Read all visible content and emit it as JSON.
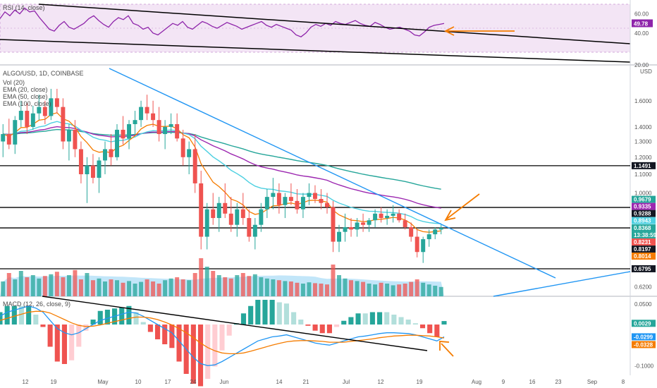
{
  "chart_data": [
    {
      "type": "line",
      "panel": "rsi",
      "title": "RSI (14, close)",
      "ylim": [
        20,
        70
      ],
      "y_ticks": [
        "60.00",
        "40.00",
        "20.00"
      ],
      "band": [
        30,
        70
      ],
      "value_label": "49.78",
      "accent": "#8e24aa",
      "series": [
        {
          "values": [
            55,
            62,
            58,
            64,
            60,
            66,
            62,
            63,
            56,
            50,
            44,
            42,
            48,
            52,
            46,
            44,
            47,
            50,
            55,
            58,
            53,
            49,
            46,
            52,
            56,
            54,
            58,
            50,
            48,
            44,
            46,
            40,
            38,
            42,
            46,
            50,
            48,
            52,
            46,
            44,
            48,
            52,
            50,
            47,
            45,
            48,
            51,
            49,
            47,
            44,
            46,
            48,
            50,
            52,
            48,
            46,
            49,
            47,
            45,
            43,
            38,
            36,
            40,
            46,
            49,
            47,
            50,
            48,
            52,
            50,
            49,
            51,
            53,
            50,
            48,
            47,
            51,
            49,
            46,
            44,
            45,
            46,
            44,
            42,
            38,
            37,
            41,
            46,
            48,
            49,
            50
          ]
        }
      ]
    },
    {
      "type": "candlestick",
      "panel": "price",
      "title": "ALGO/USD, 1D, COINBASE",
      "legend": [
        "Vol (20)",
        "EMA (20, close)",
        "EMA (50, close)",
        "EMA (100, close)"
      ],
      "unit": "USD",
      "ylim": [
        0.58,
        1.9
      ],
      "y_ticks": [
        "1.6000",
        "1.4000",
        "1.3000",
        "1.2000",
        "1.1000",
        "1.0000",
        "0.6200"
      ],
      "x_ticks": [
        "12",
        "19",
        "May",
        "10",
        "17",
        "24",
        "Jun",
        "14",
        "21",
        "Jul",
        "12",
        "19",
        "Aug",
        "9",
        "16",
        "23",
        "Sep",
        "8"
      ],
      "horizontal_levels": [
        1.1491,
        0.9288,
        0.8368,
        0.6795
      ],
      "price_tags": [
        {
          "text": "1.1491",
          "value": 1.1491,
          "color": "#131722"
        },
        {
          "text": "0.9679",
          "value": 0.9679,
          "color": "#26a69a"
        },
        {
          "text": "0.9335",
          "value": 0.9335,
          "color": "#9c27b0"
        },
        {
          "text": "0.9288",
          "value": 0.9288,
          "color": "#131722"
        },
        {
          "text": "0.8943",
          "value": 0.8943,
          "color": "#4dd0e1"
        },
        {
          "text": "0.8368",
          "value": 0.8368,
          "color": "#26a69a"
        },
        {
          "text": "13:38:59",
          "value": 0.8255,
          "color": "#26a69a"
        },
        {
          "text": "0.8231",
          "value": 0.8231,
          "color": "#ef5350"
        },
        {
          "text": "0.8197",
          "value": 0.8197,
          "color": "#131722"
        },
        {
          "text": "0.8014",
          "value": 0.8014,
          "color": "#f57c00"
        },
        {
          "text": "0.6795",
          "value": 0.6795,
          "color": "#131722"
        }
      ],
      "ohlc": [
        [
          1.3,
          1.42,
          1.2,
          1.35
        ],
        [
          1.35,
          1.46,
          1.25,
          1.28
        ],
        [
          1.28,
          1.48,
          1.22,
          1.45
        ],
        [
          1.45,
          1.6,
          1.4,
          1.52
        ],
        [
          1.52,
          1.58,
          1.35,
          1.4
        ],
        [
          1.4,
          1.56,
          1.38,
          1.5
        ],
        [
          1.5,
          1.65,
          1.45,
          1.55
        ],
        [
          1.55,
          1.6,
          1.42,
          1.48
        ],
        [
          1.48,
          1.7,
          1.45,
          1.62
        ],
        [
          1.62,
          1.7,
          1.5,
          1.55
        ],
        [
          1.55,
          1.62,
          1.25,
          1.3
        ],
        [
          1.3,
          1.42,
          1.18,
          1.38
        ],
        [
          1.38,
          1.45,
          1.2,
          1.25
        ],
        [
          1.25,
          1.3,
          1.05,
          1.1
        ],
        [
          1.1,
          1.2,
          0.95,
          1.15
        ],
        [
          1.15,
          1.22,
          1.05,
          1.08
        ],
        [
          1.08,
          1.2,
          1.0,
          1.18
        ],
        [
          1.18,
          1.3,
          1.1,
          1.25
        ],
        [
          1.25,
          1.35,
          1.15,
          1.2
        ],
        [
          1.2,
          1.42,
          1.18,
          1.38
        ],
        [
          1.38,
          1.48,
          1.28,
          1.32
        ],
        [
          1.32,
          1.45,
          1.25,
          1.42
        ],
        [
          1.42,
          1.52,
          1.35,
          1.45
        ],
        [
          1.45,
          1.6,
          1.4,
          1.55
        ],
        [
          1.55,
          1.65,
          1.45,
          1.5
        ],
        [
          1.5,
          1.6,
          1.4,
          1.45
        ],
        [
          1.45,
          1.55,
          1.3,
          1.35
        ],
        [
          1.35,
          1.45,
          1.25,
          1.4
        ],
        [
          1.4,
          1.5,
          1.35,
          1.42
        ],
        [
          1.42,
          1.5,
          1.3,
          1.32
        ],
        [
          1.32,
          1.38,
          1.15,
          1.2
        ],
        [
          1.2,
          1.3,
          1.1,
          1.25
        ],
        [
          1.25,
          1.35,
          1.0,
          1.05
        ],
        [
          1.05,
          1.12,
          0.75,
          0.8
        ],
        [
          0.8,
          0.95,
          0.75,
          0.92
        ],
        [
          0.92,
          1.0,
          0.85,
          0.88
        ],
        [
          0.88,
          0.98,
          0.82,
          0.95
        ],
        [
          0.95,
          1.05,
          0.88,
          0.9
        ],
        [
          0.9,
          0.98,
          0.82,
          0.85
        ],
        [
          0.85,
          0.95,
          0.8,
          0.92
        ],
        [
          0.92,
          1.0,
          0.85,
          0.88
        ],
        [
          0.88,
          0.92,
          0.78,
          0.8
        ],
        [
          0.8,
          0.88,
          0.75,
          0.85
        ],
        [
          0.85,
          0.95,
          0.82,
          0.92
        ],
        [
          0.92,
          1.02,
          0.88,
          0.98
        ],
        [
          0.98,
          1.08,
          0.92,
          1.0
        ],
        [
          1.0,
          1.05,
          0.9,
          0.94
        ],
        [
          0.94,
          1.0,
          0.88,
          0.98
        ],
        [
          0.98,
          1.05,
          0.94,
          0.96
        ],
        [
          0.96,
          1.02,
          0.9,
          0.92
        ],
        [
          0.92,
          1.0,
          0.88,
          0.98
        ],
        [
          0.98,
          1.05,
          0.94,
          1.0
        ],
        [
          1.0,
          1.04,
          0.95,
          0.97
        ],
        [
          0.97,
          1.02,
          0.92,
          0.95
        ],
        [
          0.95,
          1.0,
          0.9,
          0.93
        ],
        [
          0.93,
          0.96,
          0.74,
          0.78
        ],
        [
          0.78,
          0.85,
          0.74,
          0.82
        ],
        [
          0.82,
          0.9,
          0.78,
          0.84
        ],
        [
          0.84,
          0.88,
          0.8,
          0.83
        ],
        [
          0.83,
          0.88,
          0.8,
          0.86
        ],
        [
          0.86,
          0.9,
          0.82,
          0.85
        ],
        [
          0.85,
          0.88,
          0.82,
          0.87
        ],
        [
          0.87,
          0.92,
          0.84,
          0.9
        ],
        [
          0.9,
          0.93,
          0.86,
          0.88
        ],
        [
          0.88,
          0.92,
          0.85,
          0.89
        ],
        [
          0.89,
          0.94,
          0.86,
          0.9
        ],
        [
          0.9,
          0.92,
          0.86,
          0.87
        ],
        [
          0.87,
          0.9,
          0.83,
          0.84
        ],
        [
          0.84,
          0.86,
          0.78,
          0.8
        ],
        [
          0.8,
          0.83,
          0.72,
          0.74
        ],
        [
          0.74,
          0.8,
          0.7,
          0.79
        ],
        [
          0.79,
          0.83,
          0.76,
          0.81
        ],
        [
          0.81,
          0.84,
          0.79,
          0.83
        ],
        [
          0.83,
          0.85,
          0.81,
          0.8368
        ]
      ],
      "volume": [
        0.35,
        0.55,
        0.4,
        0.6,
        0.45,
        0.5,
        0.42,
        0.48,
        0.52,
        0.58,
        0.45,
        0.5,
        0.62,
        0.4,
        0.55,
        0.38,
        0.42,
        0.35,
        0.4,
        0.38,
        0.32,
        0.36,
        0.3,
        0.34,
        0.4,
        0.35,
        0.3,
        0.38,
        0.42,
        0.45,
        0.4,
        0.38,
        0.55,
        0.9,
        0.7,
        0.6,
        0.5,
        0.45,
        0.42,
        0.5,
        0.55,
        0.48,
        0.52,
        0.45,
        0.42,
        0.4,
        0.38,
        0.36,
        0.35,
        0.32,
        0.3,
        0.33,
        0.31,
        0.3,
        0.28,
        0.75,
        0.5,
        0.42,
        0.38,
        0.36,
        0.34,
        0.3,
        0.28,
        0.32,
        0.3,
        0.26,
        0.28,
        0.3,
        0.34,
        0.4,
        0.32,
        0.28,
        0.25,
        0.22
      ]
    },
    {
      "type": "line",
      "panel": "macd",
      "title": "MACD (12, 26, close, 9)",
      "y_ticks": [
        "0.0500",
        "-0.1000"
      ],
      "value_labels": [
        "0.0029",
        "-0.0299",
        "-0.0328"
      ],
      "series": [
        {
          "values": [
            0.02,
            0.03,
            0.035,
            0.04,
            0.045,
            0.04,
            0.03,
            0.01,
            -0.01,
            -0.02,
            -0.025,
            -0.02,
            -0.01,
            0.0,
            0.01,
            0.015,
            0.02,
            0.025,
            0.03,
            0.028,
            0.02,
            0.01,
            0.0,
            -0.01,
            -0.02,
            -0.04,
            -0.06,
            -0.08,
            -0.095,
            -0.1,
            -0.098,
            -0.09,
            -0.08,
            -0.07,
            -0.06,
            -0.05,
            -0.04,
            -0.035,
            -0.03,
            -0.028,
            -0.025,
            -0.03,
            -0.035,
            -0.04,
            -0.045,
            -0.048,
            -0.05,
            -0.045,
            -0.04,
            -0.035,
            -0.03,
            -0.028,
            -0.025,
            -0.022,
            -0.02,
            -0.02,
            -0.021,
            -0.022,
            -0.025,
            -0.03,
            -0.035,
            -0.04,
            -0.03
          ]
        },
        {
          "values": [
            0.01,
            0.015,
            0.02,
            0.025,
            0.03,
            0.032,
            0.032,
            0.028,
            0.02,
            0.012,
            0.004,
            -0.002,
            -0.005,
            -0.004,
            -0.001,
            0.003,
            0.007,
            0.011,
            0.015,
            0.018,
            0.018,
            0.016,
            0.012,
            0.006,
            -0.001,
            -0.01,
            -0.02,
            -0.032,
            -0.045,
            -0.056,
            -0.064,
            -0.069,
            -0.071,
            -0.071,
            -0.069,
            -0.065,
            -0.06,
            -0.055,
            -0.05,
            -0.046,
            -0.042,
            -0.04,
            -0.039,
            -0.039,
            -0.04,
            -0.041,
            -0.043,
            -0.043,
            -0.043,
            -0.041,
            -0.039,
            -0.037,
            -0.035,
            -0.032,
            -0.03,
            -0.028,
            -0.027,
            -0.026,
            -0.026,
            -0.027,
            -0.028,
            -0.03,
            -0.0328
          ]
        }
      ]
    }
  ]
}
